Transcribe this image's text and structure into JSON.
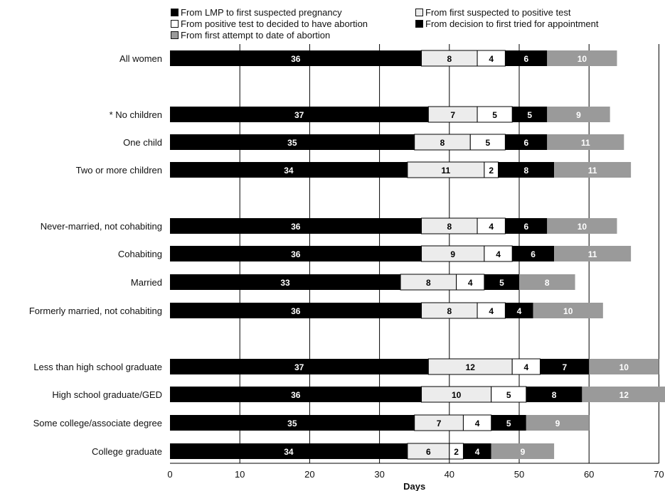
{
  "chart_data": {
    "type": "bar",
    "orientation": "horizontal",
    "stacked": true,
    "xlabel": "Days",
    "xlim": [
      0,
      70
    ],
    "xticks": [
      "0",
      "10",
      "20",
      "30",
      "40",
      "50",
      "60",
      "70"
    ],
    "legend_position": "top",
    "categories": [
      "All women",
      "* No children",
      "One child",
      "Two or more children",
      "Never-married, not cohabiting",
      "Cohabiting",
      "Married",
      "Formerly married, not cohabiting",
      "Less than high school graduate",
      "High school graduate/GED",
      "Some college/associate degree",
      "College graduate"
    ],
    "series": [
      {
        "name": "From LMP to first suspected pregnancy",
        "color": "#000000",
        "values": [
          36,
          37,
          35,
          34,
          36,
          36,
          33,
          36,
          37,
          36,
          35,
          34
        ]
      },
      {
        "name": "From first suspected to positive test",
        "color": "#ececec",
        "values": [
          8,
          7,
          8,
          11,
          8,
          9,
          8,
          8,
          12,
          10,
          7,
          6
        ]
      },
      {
        "name": "From positive test to decided to have abortion",
        "color": "#ffffff",
        "values": [
          4,
          5,
          5,
          2,
          4,
          4,
          4,
          4,
          4,
          5,
          4,
          2
        ]
      },
      {
        "name": "From decision to first tried for appointment",
        "color": "#000000",
        "values": [
          6,
          5,
          6,
          8,
          6,
          6,
          5,
          4,
          7,
          8,
          5,
          4
        ]
      },
      {
        "name": "From first attempt to date of abortion",
        "color": "#9a9a9a",
        "values": [
          10,
          9,
          11,
          11,
          10,
          11,
          8,
          10,
          10,
          12,
          9,
          9
        ]
      }
    ]
  }
}
